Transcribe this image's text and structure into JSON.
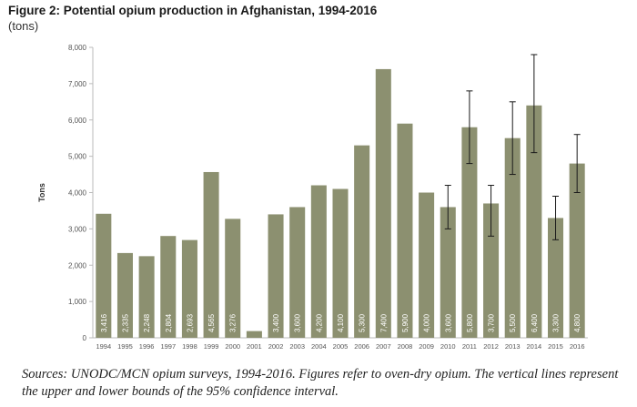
{
  "figure": {
    "title": "Figure 2: Potential opium production in Afghanistan, 1994-2016",
    "subtitle": "(tons)",
    "source": "Sources: UNODC/MCN opium surveys, 1994-2016. Figures refer to oven-dry opium. The vertical lines represent the upper and lower bounds of the 95% confidence interval."
  },
  "chart_data": {
    "type": "bar",
    "ylabel": "Tons",
    "ylim": [
      0,
      8000
    ],
    "yticks": [
      0,
      1000,
      2000,
      3000,
      4000,
      5000,
      6000,
      7000,
      8000
    ],
    "ytick_labels": [
      "0",
      "1,000",
      "2,000",
      "3,000",
      "4,000",
      "5,000",
      "6,000",
      "7,000",
      "8,000"
    ],
    "grid": false,
    "bar_color": "#8c9070",
    "label_color": "#ffffff",
    "errorbar_color": "#1a1a1a",
    "categories": [
      "1994",
      "1995",
      "1996",
      "1997",
      "1998",
      "1999",
      "2000",
      "2001",
      "2002",
      "2003",
      "2004",
      "2005",
      "2006",
      "2007",
      "2008",
      "2009",
      "2010",
      "2011",
      "2012",
      "2013",
      "2014",
      "2015",
      "2016"
    ],
    "values": [
      3416,
      2335,
      2248,
      2804,
      2693,
      4565,
      3276,
      185,
      3400,
      3600,
      4200,
      4100,
      5300,
      7400,
      5900,
      4000,
      3600,
      5800,
      3700,
      5500,
      6400,
      3300,
      4800
    ],
    "value_labels": [
      "3,416",
      "2,335",
      "2,248",
      "2,804",
      "2,693",
      "4,565",
      "3,276",
      "",
      "3,400",
      "3,600",
      "4,200",
      "4,100",
      "5,300",
      "7,400",
      "5,900",
      "4,000",
      "3,600",
      "5,800",
      "3,700",
      "5,500",
      "6,400",
      "3,300",
      "4,800"
    ],
    "error_bars": [
      {
        "category": "2010",
        "low": 3000,
        "high": 4200
      },
      {
        "category": "2011",
        "low": 4800,
        "high": 6800
      },
      {
        "category": "2012",
        "low": 2800,
        "high": 4200
      },
      {
        "category": "2013",
        "low": 4500,
        "high": 6500
      },
      {
        "category": "2014",
        "low": 5100,
        "high": 7800
      },
      {
        "category": "2015",
        "low": 2700,
        "high": 3900
      },
      {
        "category": "2016",
        "low": 4000,
        "high": 5600
      }
    ]
  }
}
